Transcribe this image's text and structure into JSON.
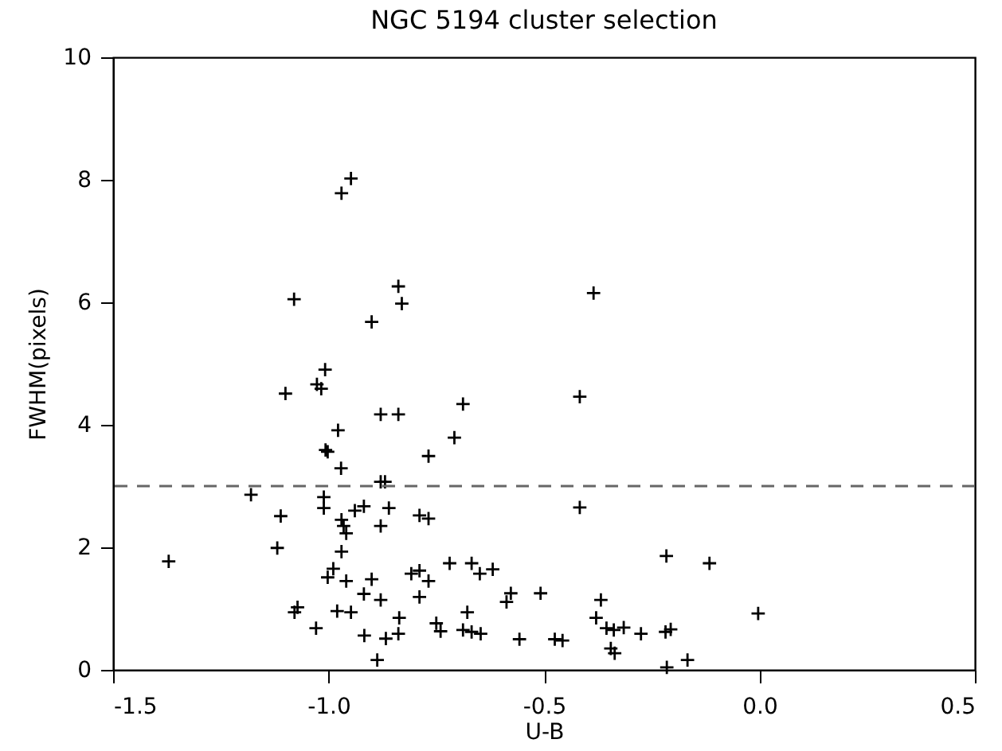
{
  "chart_data": {
    "type": "scatter",
    "title": "NGC 5194 cluster selection",
    "xlabel": "U-B",
    "ylabel": "FWHM(pixels)",
    "xlim": [
      -1.5,
      0.5
    ],
    "xticks": [
      {
        "value": -1.5,
        "label": "-1.5"
      },
      {
        "value": -1,
        "label": "-1.0"
      },
      {
        "value": -0.5,
        "label": "-0.5"
      },
      {
        "value": 0,
        "label": "0.0"
      },
      {
        "value": 0.5,
        "label": "0.5"
      }
    ],
    "ylim": [
      0,
      10
    ],
    "yticks": [
      0,
      2,
      4,
      6,
      8,
      10
    ],
    "grid": false,
    "legend": false,
    "marker": "cross",
    "ref_lines": [
      {
        "axis": "y",
        "value": 3,
        "line_style": "dashed",
        "color": "#666666"
      }
    ],
    "series": [
      {
        "color": "#000000",
        "x": [
          -1.371,
          -1.18,
          -1.111,
          -1.119,
          -1.072,
          -1.079,
          -1.029,
          -1.011,
          -1.011,
          -1.007,
          -1.002,
          -0.971,
          -0.989,
          -1.002,
          -0.97,
          -0.965,
          -0.959,
          -0.97,
          -0.959,
          -0.98,
          -0.948,
          -0.939,
          -0.918,
          -0.879,
          -0.869,
          -0.86,
          -0.879,
          -0.918,
          -0.9,
          -0.879,
          -0.836,
          -0.867,
          -0.917,
          -0.838,
          -0.887,
          -0.808,
          -0.948,
          -0.97,
          -1.08,
          -0.838,
          -0.83,
          -0.9,
          -1.008,
          -1.027,
          -1.017,
          -1.1,
          -0.879,
          -0.838,
          -0.978,
          -0.385,
          -0.417,
          -0.688,
          -0.708,
          -0.768,
          -0.789,
          -0.768,
          -0.417,
          -0.216,
          -0.116,
          -0.789,
          -0.768,
          -0.789,
          -0.719,
          -0.668,
          -0.649,
          -0.619,
          -0.577,
          -0.587,
          -0.508,
          -0.678,
          -0.75,
          -0.74,
          -0.688,
          -0.668,
          -0.647,
          -0.557,
          -0.475,
          -0.457,
          -0.368,
          -0.379,
          -0.355,
          -0.338,
          -0.315,
          -0.275,
          -0.345,
          -0.336,
          -0.218,
          -0.206,
          -0.215,
          -0.167,
          -0.003
        ],
        "values": [
          1.77,
          2.86,
          2.51,
          1.99,
          1.02,
          0.94,
          0.68,
          2.82,
          2.64,
          3.59,
          3.56,
          3.29,
          1.65,
          1.51,
          2.45,
          2.35,
          2.23,
          1.93,
          1.45,
          0.96,
          0.94,
          2.6,
          2.67,
          3.07,
          3.07,
          2.64,
          2.35,
          1.24,
          1.48,
          1.14,
          0.85,
          0.51,
          0.56,
          0.59,
          0.16,
          1.57,
          8.02,
          7.78,
          6.05,
          6.26,
          5.98,
          5.68,
          4.9,
          4.66,
          4.59,
          4.51,
          4.17,
          4.17,
          3.91,
          6.15,
          4.46,
          4.34,
          3.79,
          3.49,
          2.52,
          2.47,
          2.65,
          1.86,
          1.74,
          1.62,
          1.45,
          1.19,
          1.74,
          1.74,
          1.57,
          1.64,
          1.25,
          1.11,
          1.25,
          0.94,
          0.76,
          0.63,
          0.65,
          0.62,
          0.59,
          0.5,
          0.5,
          0.48,
          1.14,
          0.85,
          0.68,
          0.65,
          0.69,
          0.59,
          0.35,
          0.27,
          0.62,
          0.66,
          0.04,
          0.16,
          0.92
        ]
      }
    ]
  }
}
